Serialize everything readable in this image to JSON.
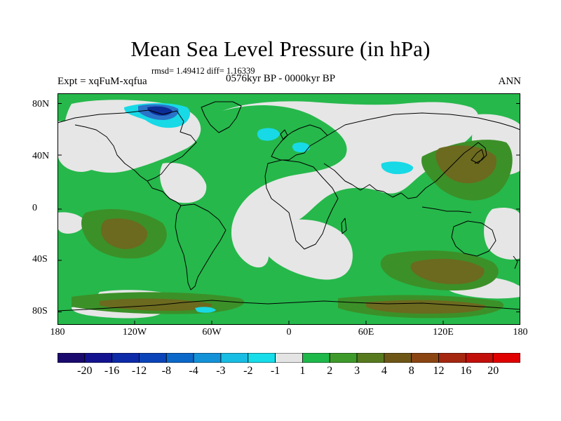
{
  "title": "Mean Sea Level Pressure (in hPa)",
  "stats": "rmsd= 1.49412 diff= 1.16339",
  "experiment": "Expt = xqFuM-xqfua",
  "period": "0576kyr BP - 0000kyr BP",
  "season": "ANN",
  "lat_ticks": [
    "80N",
    "40N",
    "0",
    "40S",
    "80S"
  ],
  "lon_ticks": [
    "180",
    "120W",
    "60W",
    "0",
    "60E",
    "120E",
    "180"
  ],
  "colorbar": {
    "labels": [
      "-20",
      "-16",
      "-12",
      "-8",
      "-4",
      "-3",
      "-2",
      "-1",
      "1",
      "2",
      "3",
      "4",
      "8",
      "12",
      "16",
      "20"
    ],
    "colors": [
      "#1a0a6e",
      "#14138f",
      "#0d2aa8",
      "#0a44b8",
      "#0b68c9",
      "#1392d8",
      "#18bde3",
      "#16dde9",
      "#e4e4e4",
      "#1fb84a",
      "#3e9a2a",
      "#577a1f",
      "#6e5716",
      "#8b4513",
      "#a52710",
      "#c20f0a",
      "#e00000"
    ]
  },
  "colors": {
    "background_field": "#e6e6e6",
    "positive_1_2": "#26b84b",
    "positive_2_3": "#3c9028",
    "positive_3_4": "#6b6a1f",
    "negative_cyan": "#18d9e6",
    "negative_blue": "#2a73c8",
    "negative_dark": "#0c2d96",
    "coastline": "#000000"
  }
}
